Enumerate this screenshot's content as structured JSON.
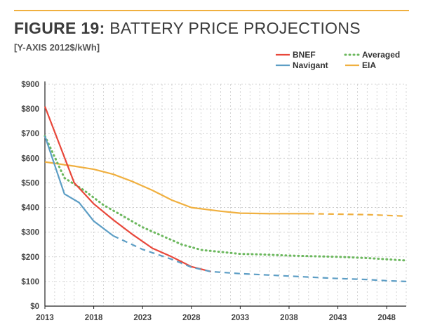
{
  "header": {
    "title_bold": "FIGURE 19:",
    "title_rest": " BATTERY PRICE PROJECTIONS",
    "subtitle": "[Y-AXIS 2012$/kWh]"
  },
  "colors": {
    "rule": "#f0b040",
    "grid": "#c8c8c8",
    "axis": "#222222"
  },
  "chart_data": {
    "type": "line",
    "title": "FIGURE 19: BATTERY PRICE PROJECTIONS",
    "ylabel": "[Y-AXIS 2012$/kWh]",
    "xlabel": "",
    "xlim": [
      2013,
      2050
    ],
    "ylim": [
      0,
      900
    ],
    "x_ticks": [
      2013,
      2018,
      2023,
      2028,
      2033,
      2038,
      2043,
      2048
    ],
    "y_ticks": [
      0,
      100,
      200,
      300,
      400,
      500,
      600,
      700,
      800,
      900
    ],
    "y_tick_labels": [
      "$0",
      "$100",
      "$200",
      "$300",
      "$400",
      "$500",
      "$600",
      "$700",
      "$800",
      "$900"
    ],
    "grid": true,
    "legend_position": "top-right",
    "series": [
      {
        "name": "BNEF",
        "color": "#e8473a",
        "solid": [
          [
            2013,
            810
          ],
          [
            2016,
            500
          ],
          [
            2018,
            415
          ],
          [
            2020,
            350
          ],
          [
            2022,
            290
          ],
          [
            2024,
            235
          ],
          [
            2026,
            200
          ],
          [
            2028,
            160
          ],
          [
            2030,
            140
          ]
        ]
      },
      {
        "name": "Navigant",
        "color": "#5d9ec5",
        "solid": [
          [
            2013,
            690
          ],
          [
            2015,
            455
          ],
          [
            2016.5,
            420
          ],
          [
            2018,
            345
          ],
          [
            2020,
            285
          ]
        ],
        "dashed": [
          [
            2020,
            285
          ],
          [
            2023,
            230
          ],
          [
            2026,
            190
          ],
          [
            2028,
            158
          ],
          [
            2030,
            140
          ],
          [
            2033,
            132
          ],
          [
            2035,
            128
          ],
          [
            2038,
            122
          ],
          [
            2041,
            116
          ],
          [
            2043,
            112
          ],
          [
            2046,
            108
          ],
          [
            2048,
            103
          ],
          [
            2050,
            100
          ]
        ]
      },
      {
        "name": "Averaged",
        "color": "#6cb85e",
        "dotted": [
          [
            2013,
            690
          ],
          [
            2015,
            520
          ],
          [
            2017,
            470
          ],
          [
            2019,
            410
          ],
          [
            2021,
            365
          ],
          [
            2023,
            320
          ],
          [
            2025,
            285
          ],
          [
            2027,
            250
          ],
          [
            2029,
            228
          ],
          [
            2031,
            220
          ],
          [
            2033,
            212
          ],
          [
            2035,
            210
          ],
          [
            2038,
            205
          ],
          [
            2041,
            202
          ],
          [
            2043,
            200
          ],
          [
            2046,
            195
          ],
          [
            2048,
            190
          ],
          [
            2050,
            185
          ]
        ]
      },
      {
        "name": "EIA",
        "color": "#f0b040",
        "solid": [
          [
            2013,
            585
          ],
          [
            2016,
            568
          ],
          [
            2018,
            555
          ],
          [
            2020,
            535
          ],
          [
            2022,
            505
          ],
          [
            2024,
            470
          ],
          [
            2026,
            430
          ],
          [
            2028,
            400
          ],
          [
            2031,
            385
          ],
          [
            2033,
            377
          ],
          [
            2036,
            375
          ],
          [
            2040,
            375
          ]
        ],
        "dashed": [
          [
            2040,
            375
          ],
          [
            2043,
            373
          ],
          [
            2046,
            371
          ],
          [
            2048,
            368
          ],
          [
            2050,
            365
          ]
        ]
      }
    ]
  }
}
